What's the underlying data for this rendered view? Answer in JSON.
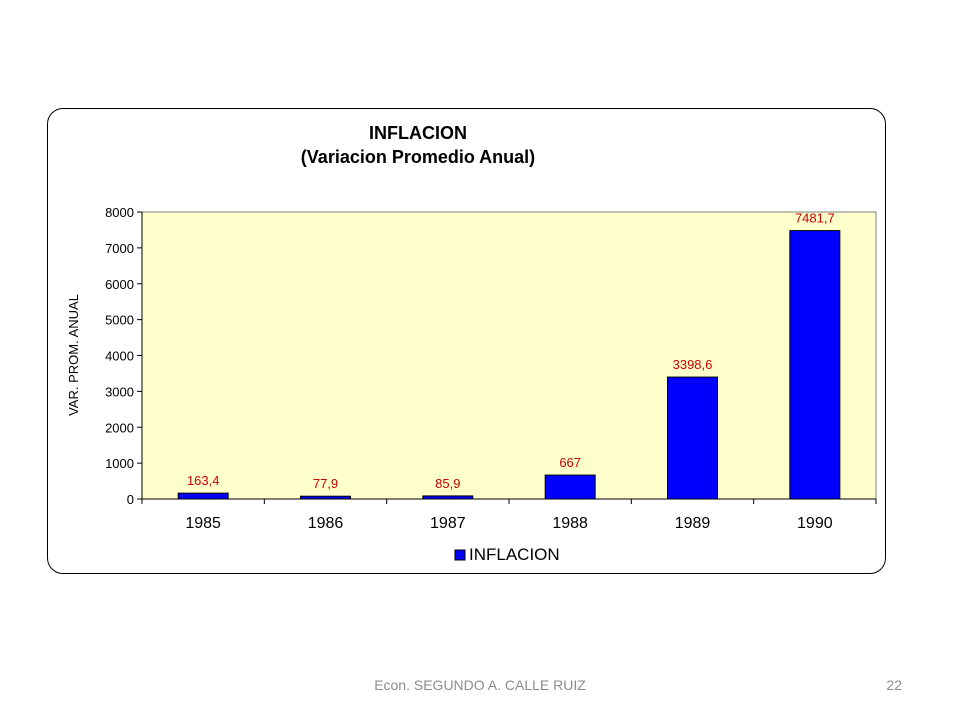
{
  "chart_data": {
    "type": "bar",
    "title": "INFLACION",
    "subtitle": "(Variacion Promedio Anual)",
    "ylabel": "VAR. PROM. ANUAL",
    "xlabel": "",
    "categories": [
      "1985",
      "1986",
      "1987",
      "1988",
      "1989",
      "1990"
    ],
    "series": [
      {
        "name": "INFLACION",
        "values": [
          163.4,
          77.9,
          85.9,
          667,
          3398.6,
          7481.7
        ],
        "data_labels": [
          "163,4",
          "77,9",
          "85,9",
          "667",
          "3398,6",
          "7481,7"
        ],
        "color": "#0000ff"
      }
    ],
    "ylim": [
      0,
      8000
    ],
    "yticks": [
      0,
      1000,
      2000,
      3000,
      4000,
      5000,
      6000,
      7000,
      8000
    ],
    "grid": false,
    "legend": "bottom",
    "plot_background": "#ffffcc",
    "data_label_color": "#cc0000"
  },
  "footer": {
    "text": "Econ. SEGUNDO A. CALLE RUIZ",
    "page_number": "22"
  }
}
